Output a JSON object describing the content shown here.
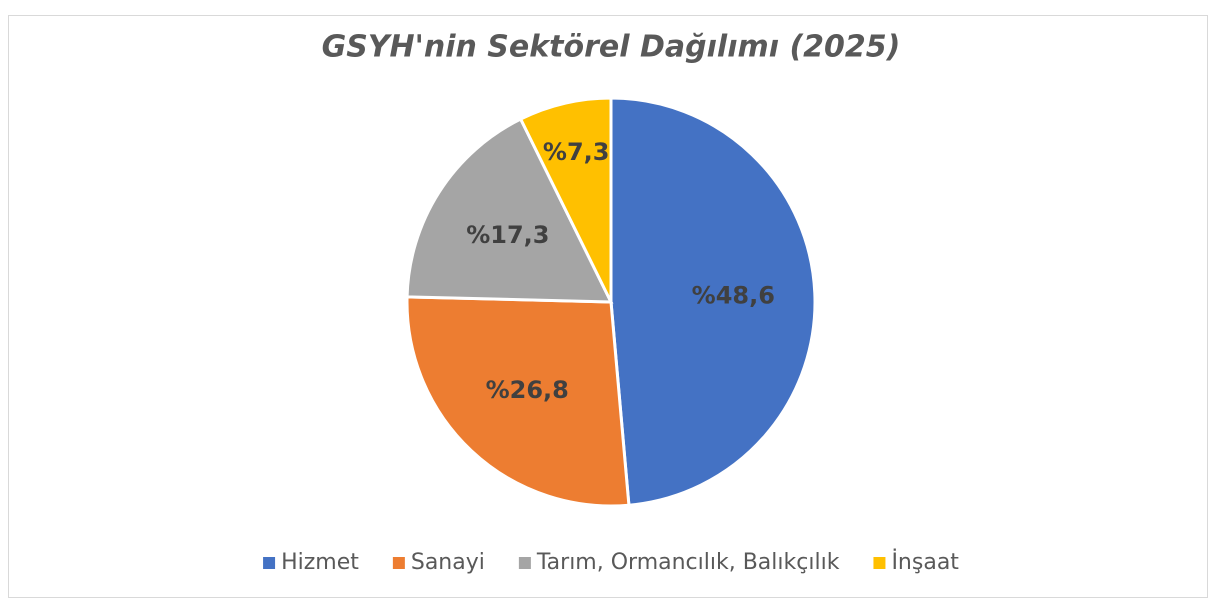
{
  "chart_data": {
    "type": "pie",
    "title": "GSYH'nin Sektörel Dağılımı (2025)",
    "categories": [
      "Hizmet",
      "Sanayi",
      "Tarım, Ormancılık, Balıkçılık",
      "İnşaat"
    ],
    "values": [
      48.6,
      26.8,
      17.3,
      7.3
    ],
    "value_labels": [
      "%48,6",
      "%26,8",
      "%17,3",
      "%7,3"
    ],
    "colors": [
      "#4472c4",
      "#ed7d31",
      "#a5a5a5",
      "#ffc000"
    ],
    "legend": "bottom"
  }
}
